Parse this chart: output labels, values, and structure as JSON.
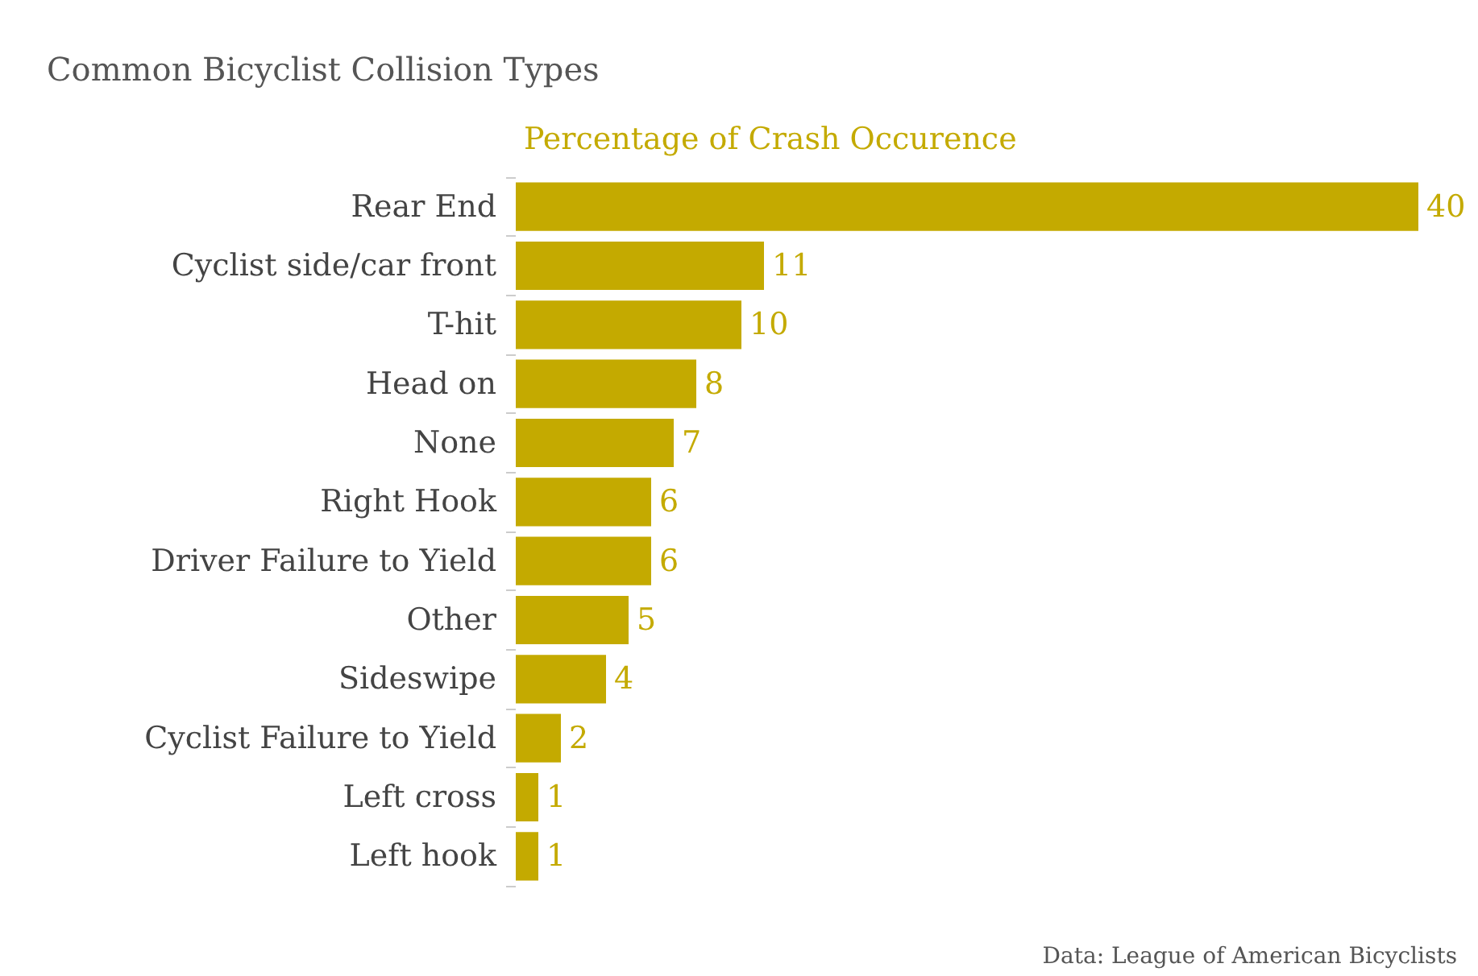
{
  "chart_data": {
    "type": "bar",
    "orientation": "horizontal",
    "title": "Common Bicyclist Collision Types",
    "subtitle": "Percentage of Crash Occurence",
    "categories": [
      "Rear End",
      "Cyclist side/car front",
      "T-hit",
      "Head on",
      "None",
      "Right Hook",
      "Driver Failure to Yield",
      "Other",
      "Sideswipe",
      "Cyclist Failure to Yield",
      "Left cross",
      "Left hook"
    ],
    "values": [
      40,
      11,
      10,
      8,
      7,
      6,
      6,
      5,
      4,
      2,
      1,
      1
    ],
    "color": "#c4aa00",
    "data_labels": true,
    "annotations": [
      "Data: League of American Bicyclists"
    ]
  }
}
